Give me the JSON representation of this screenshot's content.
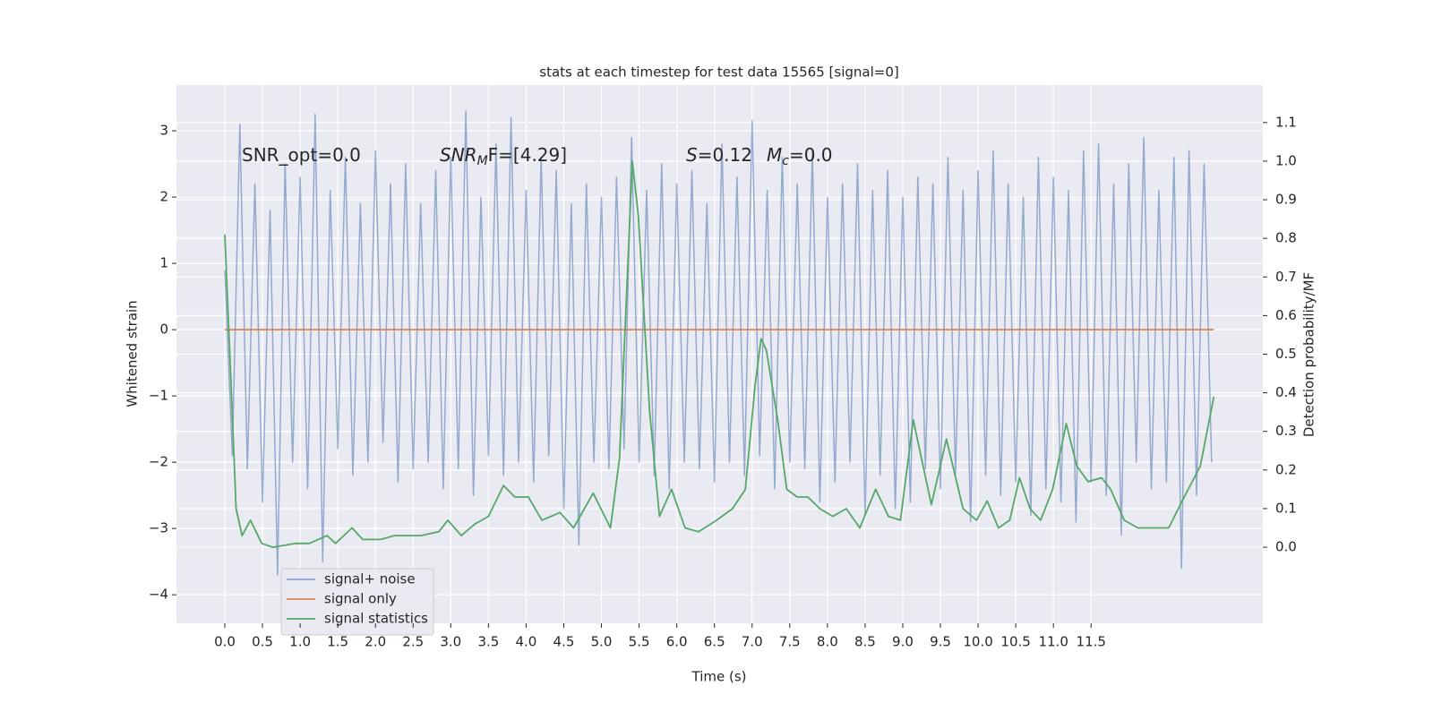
{
  "chart_data": {
    "type": "line",
    "title": "stats at each timestep for test data 15565 [signal=0]",
    "xlabel": "Time (s)",
    "ylabel": "Whitened strain",
    "y2label": "Detection probability/MF",
    "annotations": [
      [
        "SNR_opt=0.0"
      ],
      [
        "SNR",
        "M",
        "F=[4.29]"
      ],
      [
        "S",
        "=0.12",
        "M",
        "c",
        "=0.0"
      ]
    ],
    "xlim": [
      -0.642,
      13.78
    ],
    "ylim": [
      -4.43,
      3.69
    ],
    "y2lim": [
      -0.197,
      1.197
    ],
    "xticks": [
      {
        "value": 0,
        "label": "0.0"
      },
      0.5,
      {
        "value": 1,
        "label": "1.0"
      },
      1.5,
      {
        "value": 2,
        "label": "2.0"
      },
      2.5,
      {
        "value": 3,
        "label": "3.0"
      },
      3.5,
      {
        "value": 4,
        "label": "4.0"
      },
      4.5,
      {
        "value": 5,
        "label": "5.0"
      },
      5.5,
      {
        "value": 6,
        "label": "6.0"
      },
      6.5,
      {
        "value": 7,
        "label": "7.0"
      },
      7.5,
      {
        "value": 8,
        "label": "8.0"
      },
      8.5,
      {
        "value": 9,
        "label": "9.0"
      },
      9.5,
      {
        "value": 10,
        "label": "10.0"
      },
      10.5,
      {
        "value": 11,
        "label": "11.0"
      },
      11.5
    ],
    "yticks": [
      {
        "value": -4,
        "label": "−4"
      },
      {
        "value": -3,
        "label": "−3"
      },
      {
        "value": -2,
        "label": "−2"
      },
      {
        "value": -1,
        "label": "−1"
      },
      0,
      1,
      2,
      3
    ],
    "y2ticks": [
      {
        "value": 0,
        "label": "0.0"
      },
      0.1,
      0.2,
      0.3,
      0.4,
      0.5,
      0.6,
      0.7,
      0.8,
      0.9,
      {
        "value": 1,
        "label": "1.0"
      },
      1.1
    ],
    "grid": true,
    "legend_loc": "lower left",
    "series": [
      {
        "name": "signal+ noise",
        "color": "#4c72b0",
        "x": [
          0.0,
          0.1,
          0.2,
          0.3,
          0.4,
          0.5,
          0.6,
          0.7,
          0.8,
          0.9,
          1.0,
          1.1,
          1.2,
          1.3,
          1.4,
          1.5,
          1.6,
          1.7,
          1.8,
          1.9,
          2.0,
          2.1,
          2.2,
          2.3,
          2.4,
          2.5,
          2.6,
          2.7,
          2.8,
          2.9,
          3.0,
          3.1,
          3.2,
          3.3,
          3.4,
          3.5,
          3.6,
          3.7,
          3.8,
          3.9,
          4.0,
          4.1,
          4.2,
          4.3,
          4.4,
          4.5,
          4.6,
          4.7,
          4.8,
          4.9,
          5.0,
          5.1,
          5.2,
          5.3,
          5.4,
          5.5,
          5.6,
          5.7,
          5.8,
          5.9,
          6.0,
          6.1,
          6.2,
          6.3,
          6.4,
          6.5,
          6.6,
          6.7,
          6.8,
          6.9,
          7.0,
          7.1,
          7.2,
          7.3,
          7.4,
          7.5,
          7.6,
          7.7,
          7.8,
          7.9,
          8.0,
          8.1,
          8.2,
          8.3,
          8.4,
          8.5,
          8.6,
          8.7,
          8.8,
          8.9,
          9.0,
          9.1,
          9.2,
          9.3,
          9.4,
          9.5,
          9.6,
          9.7,
          9.8,
          9.9,
          10.0,
          10.1,
          10.2,
          10.3,
          10.4,
          10.5,
          10.6,
          10.7,
          10.8,
          10.9,
          11.0,
          11.1,
          11.2,
          11.3,
          11.4,
          11.5,
          11.6,
          11.7,
          11.8,
          11.9,
          12.0,
          12.1,
          12.2,
          12.3,
          12.4,
          12.5,
          12.6,
          12.7,
          12.8,
          12.9,
          13.0,
          13.1
        ],
        "values": [
          0.9,
          -1.9,
          3.1,
          -2.1,
          2.2,
          -2.6,
          1.8,
          -3.7,
          2.5,
          -2.0,
          2.3,
          -2.4,
          3.25,
          -3.5,
          2.1,
          -1.8,
          2.6,
          -2.2,
          1.9,
          -2.0,
          2.7,
          -1.7,
          2.2,
          -2.3,
          2.5,
          -2.1,
          1.9,
          -2.0,
          2.4,
          -2.4,
          2.6,
          -2.1,
          3.3,
          -2.5,
          2.0,
          -1.9,
          2.8,
          -2.2,
          3.2,
          -2.0,
          2.1,
          -2.3,
          2.6,
          -1.9,
          2.4,
          -2.7,
          1.9,
          -3.25,
          2.2,
          -2.0,
          2.0,
          -2.1,
          2.3,
          -1.8,
          2.9,
          -2.0,
          2.1,
          -2.2,
          2.5,
          -2.4,
          2.2,
          -2.0,
          2.4,
          -2.1,
          1.9,
          -2.3,
          2.8,
          -2.0,
          2.3,
          -2.2,
          3.15,
          -1.9,
          2.1,
          -2.4,
          2.6,
          -2.0,
          2.2,
          -2.1,
          2.7,
          -2.6,
          2.0,
          -2.3,
          2.2,
          -2.0,
          2.5,
          -2.8,
          2.1,
          -2.2,
          2.4,
          -2.7,
          2.0,
          -2.6,
          2.3,
          -2.1,
          2.2,
          -2.4,
          2.6,
          -2.2,
          2.1,
          -2.9,
          2.4,
          -2.2,
          2.7,
          -2.5,
          2.2,
          -2.3,
          2.0,
          -2.8,
          2.6,
          -2.4,
          2.3,
          -2.6,
          2.1,
          -2.9,
          2.7,
          -2.3,
          2.8,
          -2.5,
          2.2,
          -3.1,
          2.5,
          -2.0,
          2.9,
          -2.4,
          2.1,
          -2.3,
          2.6,
          -3.6,
          2.7,
          -2.5,
          2.5,
          -2.0
        ]
      },
      {
        "name": "signal only",
        "color": "#dd8452",
        "x": [
          0.0,
          13.13
        ],
        "values": [
          0,
          0
        ]
      },
      {
        "name": "signal statistics",
        "color": "#55a868",
        "axis": "y2",
        "x": [
          0.0,
          0.08,
          0.15,
          0.23,
          0.34,
          0.49,
          0.64,
          0.94,
          1.12,
          1.36,
          1.47,
          1.69,
          1.83,
          2.07,
          2.25,
          2.6,
          2.84,
          2.96,
          3.14,
          3.32,
          3.5,
          3.7,
          3.85,
          4.03,
          4.21,
          4.45,
          4.63,
          4.89,
          5.12,
          5.24,
          5.41,
          5.49,
          5.64,
          5.77,
          5.93,
          6.11,
          6.29,
          6.53,
          6.74,
          6.91,
          7.04,
          7.12,
          7.19,
          7.34,
          7.46,
          7.6,
          7.74,
          7.9,
          8.07,
          8.25,
          8.43,
          8.64,
          8.81,
          8.97,
          9.14,
          9.38,
          9.58,
          9.8,
          9.98,
          10.12,
          10.27,
          10.42,
          10.55,
          10.69,
          10.83,
          10.99,
          11.17,
          11.31,
          11.46,
          11.64,
          11.76,
          11.94,
          12.12,
          12.35,
          12.53,
          12.71,
          12.95,
          13.13
        ],
        "values": [
          0.81,
          0.44,
          0.1,
          0.03,
          0.07,
          0.01,
          0.0,
          0.01,
          0.01,
          0.03,
          0.01,
          0.05,
          0.02,
          0.02,
          0.03,
          0.03,
          0.04,
          0.07,
          0.03,
          0.06,
          0.08,
          0.16,
          0.13,
          0.13,
          0.07,
          0.09,
          0.05,
          0.14,
          0.05,
          0.23,
          1.0,
          0.86,
          0.35,
          0.08,
          0.15,
          0.05,
          0.04,
          0.07,
          0.1,
          0.15,
          0.42,
          0.54,
          0.51,
          0.33,
          0.15,
          0.13,
          0.13,
          0.1,
          0.08,
          0.1,
          0.05,
          0.15,
          0.08,
          0.07,
          0.33,
          0.11,
          0.28,
          0.1,
          0.07,
          0.12,
          0.05,
          0.07,
          0.18,
          0.1,
          0.07,
          0.15,
          0.32,
          0.21,
          0.17,
          0.18,
          0.15,
          0.07,
          0.05,
          0.05,
          0.05,
          0.12,
          0.21,
          0.39
        ]
      }
    ]
  }
}
